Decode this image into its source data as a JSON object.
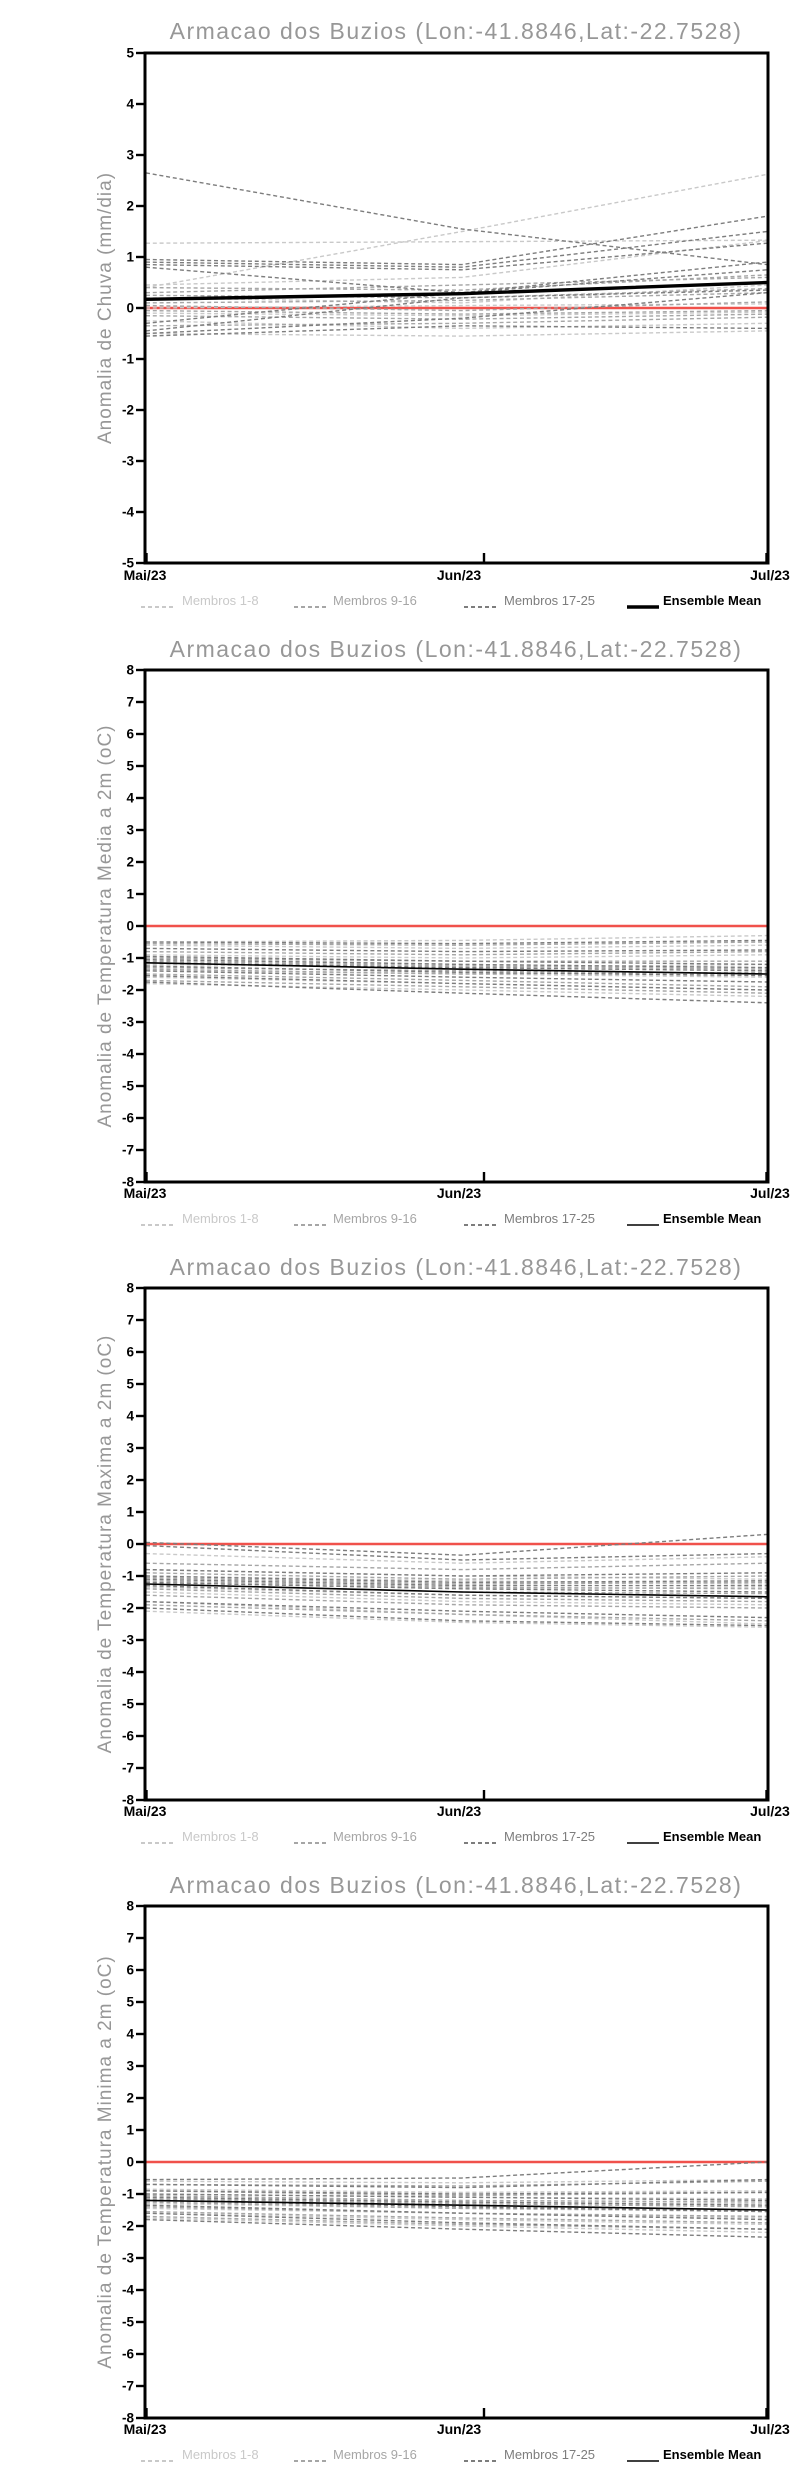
{
  "colors": {
    "member_light": "#c9c9c9",
    "member_medium": "#a6a6a6",
    "member_dark": "#7d7d7d",
    "mean": "#000000",
    "reference": "#f0514b",
    "heading": "#979797",
    "tick_text": "#000000"
  },
  "legend": {
    "items": [
      {
        "label": "Membros 1-8",
        "color_key": "member_light",
        "style": "dashed"
      },
      {
        "label": "Membros 9-16",
        "color_key": "member_medium",
        "style": "dashed"
      },
      {
        "label": "Membros 17-25",
        "color_key": "member_dark",
        "style": "dashed"
      },
      {
        "label": "Ensemble Mean",
        "color_key": "mean",
        "style": "solid"
      }
    ]
  },
  "chart_data": [
    {
      "id": "precipitation-anomaly-chart",
      "type": "line",
      "title": "Armacao dos Buzios (Lon:-41.8846,Lat:-22.7528)",
      "ylabel": "Anomalia de Chuva (mm/dia)",
      "ylim": [
        -5,
        5
      ],
      "ytick_interval": 1,
      "x_tick_labels": [
        "Mai/23",
        "Jun/23",
        "Jul/23"
      ],
      "reference_line": 0,
      "mean_stroke_width": 3.4,
      "series": [
        {
          "name": "Membros 1-8",
          "color_key": "member_light",
          "values": [
            [
              1.27,
              1.3,
              1.33
            ],
            [
              0.4,
              1.5,
              2.62
            ],
            [
              0.45,
              0.6,
              1.32
            ],
            [
              0.2,
              0.1,
              0.45
            ],
            [
              0.0,
              0.05,
              0.08
            ],
            [
              -0.1,
              -0.15,
              -0.08
            ],
            [
              -0.25,
              -0.4,
              -0.3
            ],
            [
              -0.5,
              -0.55,
              -0.45
            ]
          ]
        },
        {
          "name": "Membros 9-16",
          "color_key": "member_medium",
          "values": [
            [
              0.4,
              0.35,
              0.65
            ],
            [
              0.3,
              0.45,
              0.6
            ],
            [
              0.25,
              0.2,
              0.38
            ],
            [
              0.1,
              0.15,
              0.3
            ],
            [
              0.05,
              -0.05,
              0.12
            ],
            [
              -0.05,
              -0.12,
              -0.05
            ],
            [
              -0.15,
              -0.22,
              -0.12
            ],
            [
              -0.35,
              -0.3,
              -0.18
            ]
          ]
        },
        {
          "name": "Membros 17-25",
          "color_key": "member_dark",
          "values": [
            [
              2.65,
              1.55,
              0.85
            ],
            [
              0.95,
              0.85,
              1.8
            ],
            [
              0.9,
              0.8,
              1.5
            ],
            [
              0.85,
              0.75,
              1.27
            ],
            [
              0.8,
              0.3,
              0.9
            ],
            [
              -0.3,
              0.3,
              0.75
            ],
            [
              -0.45,
              0.2,
              0.35
            ],
            [
              -0.5,
              -0.2,
              0.3
            ],
            [
              -0.55,
              -0.35,
              -0.4
            ]
          ]
        },
        {
          "name": "Ensemble Mean",
          "color_key": "mean",
          "values": [
            [
              0.17,
              0.28,
              0.5
            ]
          ]
        }
      ]
    },
    {
      "id": "mean-temperature-anomaly-chart",
      "type": "line",
      "title": "Armacao dos Buzios (Lon:-41.8846,Lat:-22.7528)",
      "ylabel": "Anomalia de Temperatura Media a 2m (oC)",
      "ylim": [
        -8,
        8
      ],
      "ytick_interval": 1,
      "x_tick_labels": [
        "Mai/23",
        "Jun/23",
        "Jul/23"
      ],
      "reference_line": 0,
      "mean_stroke_width": 1.6,
      "series": [
        {
          "name": "Membros 1-8",
          "color_key": "member_light",
          "values": [
            [
              -0.5,
              -0.45,
              -0.3
            ],
            [
              -0.6,
              -0.7,
              -0.6
            ],
            [
              -0.9,
              -1.0,
              -0.9
            ],
            [
              -1.0,
              -1.2,
              -1.3
            ],
            [
              -1.2,
              -1.3,
              -1.2
            ],
            [
              -1.4,
              -1.5,
              -1.6
            ],
            [
              -1.6,
              -1.8,
              -2.0
            ],
            [
              -1.8,
              -2.0,
              -2.2
            ]
          ]
        },
        {
          "name": "Membros 9-16",
          "color_key": "member_medium",
          "values": [
            [
              -0.55,
              -0.6,
              -0.5
            ],
            [
              -0.8,
              -0.9,
              -0.8
            ],
            [
              -1.0,
              -1.1,
              -1.1
            ],
            [
              -1.1,
              -1.25,
              -1.35
            ],
            [
              -1.3,
              -1.4,
              -1.5
            ],
            [
              -1.35,
              -1.5,
              -1.45
            ],
            [
              -1.5,
              -1.7,
              -1.9
            ],
            [
              -1.7,
              -1.9,
              -2.1
            ]
          ]
        },
        {
          "name": "Membros 17-25",
          "color_key": "member_dark",
          "values": [
            [
              -0.5,
              -0.55,
              -0.45
            ],
            [
              -0.7,
              -0.8,
              -0.75
            ],
            [
              -0.95,
              -1.1,
              -1.2
            ],
            [
              -1.05,
              -1.2,
              -1.3
            ],
            [
              -1.15,
              -1.3,
              -1.4
            ],
            [
              -1.25,
              -1.45,
              -1.55
            ],
            [
              -1.4,
              -1.6,
              -1.75
            ],
            [
              -1.55,
              -1.8,
              -2.0
            ],
            [
              -1.75,
              -2.1,
              -2.4
            ]
          ]
        },
        {
          "name": "Ensemble Mean",
          "color_key": "mean",
          "values": [
            [
              -1.15,
              -1.35,
              -1.5
            ]
          ]
        }
      ]
    },
    {
      "id": "maximum-temperature-anomaly-chart",
      "type": "line",
      "title": "Armacao dos Buzios (Lon:-41.8846,Lat:-22.7528)",
      "ylabel": "Anomalia de Temperatura Maxima a 2m (oC)",
      "ylim": [
        -8,
        8
      ],
      "ytick_interval": 1,
      "x_tick_labels": [
        "Mai/23",
        "Jun/23",
        "Jul/23"
      ],
      "reference_line": 0,
      "mean_stroke_width": 1.6,
      "series": [
        {
          "name": "Membros 1-8",
          "color_key": "member_light",
          "values": [
            [
              -0.3,
              -0.6,
              -0.4
            ],
            [
              -0.8,
              -1.0,
              -1.1
            ],
            [
              -1.0,
              -1.15,
              -1.25
            ],
            [
              -1.2,
              -1.4,
              -1.35
            ],
            [
              -1.35,
              -1.6,
              -1.7
            ],
            [
              -1.5,
              -1.8,
              -1.9
            ],
            [
              -1.8,
              -2.2,
              -2.5
            ],
            [
              -2.1,
              -2.45,
              -2.6
            ]
          ]
        },
        {
          "name": "Membros 9-16",
          "color_key": "member_medium",
          "values": [
            [
              -0.6,
              -0.8,
              -0.6
            ],
            [
              -0.9,
              -1.1,
              -1.0
            ],
            [
              -1.05,
              -1.25,
              -1.2
            ],
            [
              -1.15,
              -1.35,
              -1.4
            ],
            [
              -1.25,
              -1.5,
              -1.55
            ],
            [
              -1.4,
              -1.7,
              -1.8
            ],
            [
              -1.6,
              -1.9,
              -2.0
            ],
            [
              -1.9,
              -2.2,
              -2.4
            ]
          ]
        },
        {
          "name": "Membros 17-25",
          "color_key": "member_dark",
          "values": [
            [
              0.05,
              -0.35,
              0.3
            ],
            [
              -0.05,
              -0.5,
              -0.3
            ],
            [
              -0.8,
              -1.0,
              -0.9
            ],
            [
              -1.0,
              -1.2,
              -1.15
            ],
            [
              -1.1,
              -1.3,
              -1.3
            ],
            [
              -1.2,
              -1.4,
              -1.5
            ],
            [
              -1.3,
              -1.6,
              -1.7
            ],
            [
              -1.8,
              -2.1,
              -2.3
            ],
            [
              -2.0,
              -2.4,
              -2.55
            ]
          ]
        },
        {
          "name": "Ensemble Mean",
          "color_key": "mean",
          "values": [
            [
              -1.25,
              -1.5,
              -1.65
            ]
          ]
        }
      ]
    },
    {
      "id": "minimum-temperature-anomaly-chart",
      "type": "line",
      "title": "Armacao dos Buzios (Lon:-41.8846,Lat:-22.7528)",
      "ylabel": "Anomalia de Temperatura Minima a 2m (oC)",
      "ylim": [
        -8,
        8
      ],
      "ytick_interval": 1,
      "x_tick_labels": [
        "Mai/23",
        "Jun/23",
        "Jul/23"
      ],
      "reference_line": 0,
      "mean_stroke_width": 1.6,
      "series": [
        {
          "name": "Membros 1-8",
          "color_key": "member_light",
          "values": [
            [
              -0.6,
              -0.65,
              -0.55
            ],
            [
              -0.85,
              -0.95,
              -0.9
            ],
            [
              -1.0,
              -1.1,
              -1.15
            ],
            [
              -1.15,
              -1.25,
              -1.3
            ],
            [
              -1.3,
              -1.45,
              -1.55
            ],
            [
              -1.45,
              -1.6,
              -1.75
            ],
            [
              -1.6,
              -1.8,
              -1.95
            ],
            [
              -1.75,
              -2.0,
              -2.2
            ]
          ]
        },
        {
          "name": "Membros 9-16",
          "color_key": "member_medium",
          "values": [
            [
              -0.7,
              -0.75,
              -0.6
            ],
            [
              -0.9,
              -1.05,
              -0.95
            ],
            [
              -1.05,
              -1.2,
              -1.25
            ],
            [
              -1.15,
              -1.3,
              -1.4
            ],
            [
              -1.25,
              -1.45,
              -1.5
            ],
            [
              -1.4,
              -1.6,
              -1.7
            ],
            [
              -1.55,
              -1.75,
              -1.9
            ],
            [
              -1.7,
              -1.95,
              -2.1
            ]
          ]
        },
        {
          "name": "Membros 17-25",
          "color_key": "member_dark",
          "values": [
            [
              -0.55,
              -0.5,
              0.0
            ],
            [
              -0.7,
              -0.8,
              -0.55
            ],
            [
              -0.9,
              -1.0,
              -0.95
            ],
            [
              -1.0,
              -1.1,
              -1.2
            ],
            [
              -1.1,
              -1.25,
              -1.35
            ],
            [
              -1.2,
              -1.4,
              -1.55
            ],
            [
              -1.35,
              -1.6,
              -1.8
            ],
            [
              -1.6,
              -1.9,
              -2.1
            ],
            [
              -1.8,
              -2.1,
              -2.35
            ]
          ]
        },
        {
          "name": "Ensemble Mean",
          "color_key": "mean",
          "values": [
            [
              -1.2,
              -1.35,
              -1.5
            ]
          ]
        }
      ]
    }
  ]
}
